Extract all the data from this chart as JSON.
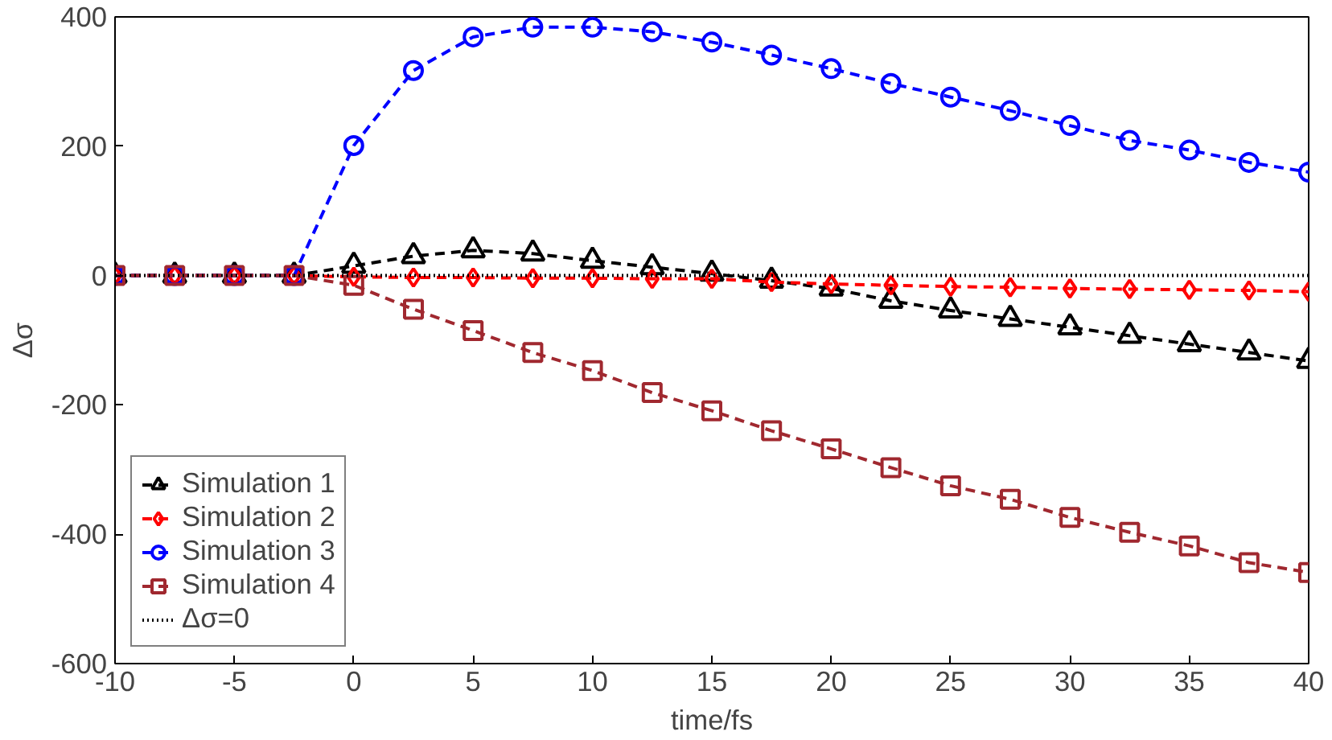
{
  "chart_data": {
    "type": "line",
    "xlabel": "time/fs",
    "ylabel": "Δσ",
    "x": [
      -10,
      -7.5,
      -5,
      -2.5,
      0,
      2.5,
      5,
      7.5,
      10,
      12.5,
      15,
      17.5,
      20,
      22.5,
      25,
      27.5,
      30,
      32.5,
      35,
      37.5,
      40
    ],
    "series": [
      {
        "name": "Simulation 1",
        "color": "#000000",
        "marker": "triangle",
        "values": [
          0,
          0,
          0,
          0,
          15,
          30,
          39,
          34,
          23,
          13,
          3,
          -8,
          -20,
          -39,
          -54,
          -67,
          -80,
          -93,
          -106,
          -119,
          -132
        ]
      },
      {
        "name": "Simulation 2",
        "color": "#ff0000",
        "marker": "diamond",
        "values": [
          0,
          0,
          0,
          0,
          -2,
          -3,
          -3,
          -4,
          -4,
          -5,
          -5,
          -10,
          -13,
          -15,
          -17,
          -18,
          -20,
          -21,
          -22,
          -23,
          -25
        ]
      },
      {
        "name": "Simulation 3",
        "color": "#0000ff",
        "marker": "circle",
        "values": [
          0,
          0,
          0,
          0,
          201,
          317,
          369,
          384,
          384,
          377,
          361,
          341,
          320,
          297,
          276,
          255,
          232,
          209,
          194,
          175,
          160
        ]
      },
      {
        "name": "Simulation 4",
        "color": "#a0282f",
        "marker": "square",
        "values": [
          0,
          0,
          0,
          0,
          -15,
          -52,
          -85,
          -119,
          -147,
          -181,
          -209,
          -240,
          -268,
          -297,
          -325,
          -346,
          -374,
          -397,
          -418,
          -444,
          -459
        ]
      }
    ],
    "line_style": "dashed",
    "ref_lines": [
      {
        "axis": "y",
        "value": 0,
        "label": "Δσ=0",
        "color": "#000000",
        "line_style": "dotted"
      }
    ],
    "xlim": [
      -10,
      40
    ],
    "xticks": [
      -10,
      -5,
      0,
      5,
      10,
      15,
      20,
      25,
      30,
      35,
      40
    ],
    "ylim": [
      -600,
      400
    ],
    "yticks": [
      -600,
      -400,
      -200,
      0,
      200,
      400
    ],
    "grid": false,
    "legend": "bottom left"
  }
}
